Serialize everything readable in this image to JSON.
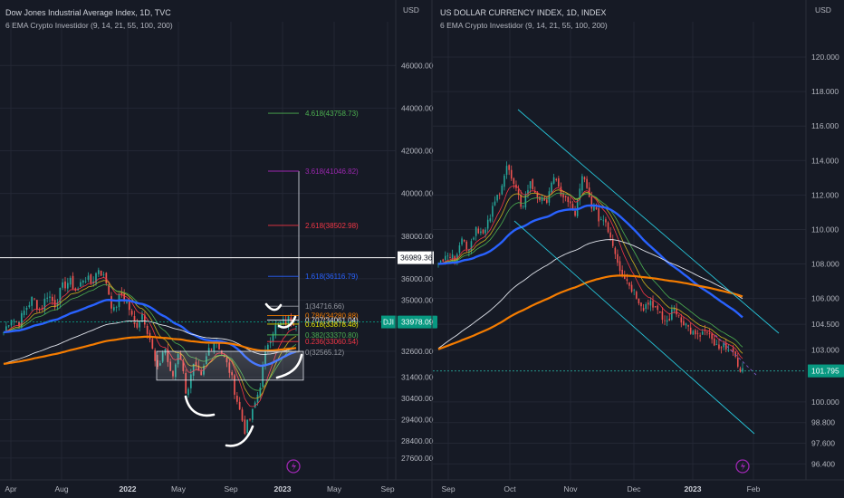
{
  "theme": {
    "background": "#161a25",
    "grid": "#232734",
    "text": "#b2b5be",
    "separator": "#2a2e39",
    "candle_up": "#26a69a",
    "candle_down": "#ef5350",
    "ema_blue": "#2962ff",
    "ema_orange": "#f57c00",
    "ema_white": "#e0e3eb",
    "ema_red": "#f23645",
    "ema_yellow": "#c9b11e",
    "ema_green": "#4caf50",
    "channel": "#26c6da",
    "dji_badge": "#089981"
  },
  "chart_data": [
    {
      "type": "candlestick",
      "title": "Dow Jones Industrial Average Index, 1D, TVC",
      "subtitle": "6 EMA Crypto Investidor (9, 14, 21, 55, 100, 200)",
      "currency": "USD",
      "y_ticks": [
        46000.0,
        44000.0,
        42000.0,
        40000.0,
        38000.0,
        36000.0,
        35000.0,
        33978.09,
        32600.0,
        31400.0,
        30400.0,
        29400.0,
        28400.0,
        27600.0
      ],
      "y_tick_labels": [
        "46000.00",
        "44000.00",
        "42000.00",
        "40000.00",
        "38000.00",
        "36000.00",
        "35000.00",
        "33978.09",
        "32600.00",
        "31400.00",
        "30400.00",
        "29400.00",
        "28400.00",
        "27600.00"
      ],
      "x_tick_labels": [
        "Apr",
        "Aug",
        "2022",
        "May",
        "Sep",
        "2023",
        "May",
        "Sep"
      ],
      "last_price_label": "33978.09",
      "last_price_tag": "DJI",
      "horizontal_line_label": "36989.36",
      "fib_levels": [
        {
          "label": "4.618(43758.73)",
          "value": 43758.73,
          "color": "#4caf50"
        },
        {
          "label": "3.618(41046.82)",
          "value": 41046.82,
          "color": "#9c27b0"
        },
        {
          "label": "2.618(38502.98)",
          "value": 38502.98,
          "color": "#f23645"
        },
        {
          "label": "1.618(36116.79)",
          "value": 36116.79,
          "color": "#2962ff"
        },
        {
          "label": "1(34716.66)",
          "value": 34716.66,
          "color": "#9598a1"
        },
        {
          "label": "0.786(34280.88)",
          "value": 34280.88,
          "color": "#f57c00"
        },
        {
          "label": "0.707(34061.04)",
          "value": 34061.04,
          "color": "#e0e3eb"
        },
        {
          "label": "0.618(33878.48)",
          "value": 33878.48,
          "color": "#e6e600"
        },
        {
          "label": "0.382(33370.80)",
          "value": 33370.8,
          "color": "#4caf50"
        },
        {
          "label": "0.236(33060.54)",
          "value": 33060.54,
          "color": "#f23645"
        },
        {
          "label": "0(32565.12)",
          "value": 32565.12,
          "color": "#9598a1"
        }
      ],
      "range_box": {
        "top": 32600,
        "bottom": 31250
      },
      "price_path": [
        33500,
        34200,
        33900,
        34600,
        35100,
        34500,
        35300,
        34800,
        35600,
        35900,
        35400,
        36100,
        35800,
        36500,
        35900,
        34400,
        35300,
        34800,
        33700,
        34400,
        33200,
        31600,
        32900,
        31200,
        32800,
        30600,
        31900,
        31300,
        32700,
        33200,
        32400,
        31600,
        30200,
        28900,
        29700,
        30900,
        32900,
        33700,
        33900,
        34100,
        33980
      ],
      "axis_range": [
        27000,
        47200
      ]
    },
    {
      "type": "candlestick",
      "title": "US DOLLAR CURRENCY INDEX, 1D, INDEX",
      "subtitle": "6 EMA Crypto Investidor (9, 14, 21, 55, 100, 200)",
      "currency": "USD",
      "y_ticks": [
        120.0,
        118.0,
        116.0,
        114.0,
        112.0,
        110.0,
        108.0,
        106.0,
        104.5,
        103.0,
        101.795,
        100.0,
        98.8,
        97.6,
        96.4
      ],
      "y_tick_labels": [
        "120.000",
        "118.000",
        "116.000",
        "114.000",
        "112.000",
        "110.000",
        "108.000",
        "106.000",
        "104.500",
        "103.000",
        "101.795",
        "100.000",
        "98.800",
        "97.600",
        "96.400"
      ],
      "x_tick_labels": [
        "Sep",
        "Oct",
        "Nov",
        "Dec",
        "2023",
        "Feb"
      ],
      "last_price_label": "101.795",
      "price_path": [
        107.8,
        108.8,
        108.2,
        109.5,
        108.9,
        110.2,
        109.6,
        111.0,
        112.2,
        113.7,
        112.4,
        111.3,
        112.7,
        112.0,
        111.4,
        113.0,
        112.2,
        111.6,
        110.9,
        113.1,
        111.6,
        110.7,
        110.5,
        109.1,
        107.6,
        106.9,
        106.2,
        105.5,
        105.9,
        105.0,
        104.6,
        105.4,
        104.8,
        104.2,
        103.7,
        104.1,
        103.5,
        102.9,
        103.4,
        102.4,
        101.8
      ],
      "axis_range": [
        96.0,
        121.0
      ]
    }
  ],
  "ui": {
    "lightning_icon": "lightning-icon"
  }
}
